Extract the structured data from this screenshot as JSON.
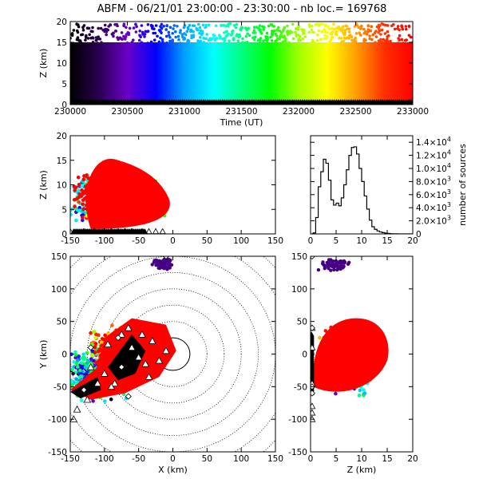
{
  "title": "ABFM - 06/21/01 23:00:00 - 23:30:00 - nb loc.= 169768",
  "colors": {
    "rainbow": [
      "#000000",
      "#2a0050",
      "#6a00c8",
      "#0000ff",
      "#00a0ff",
      "#00ffff",
      "#00ff80",
      "#00ff00",
      "#a0ff00",
      "#ffff00",
      "#ffa000",
      "#ff3000",
      "#ff0000"
    ],
    "late": "#ff0000",
    "station": "#000000"
  },
  "chart_data": [
    {
      "id": "time-height",
      "type": "scatter",
      "xlabel": "Time (UT)",
      "ylabel": "Z (km)",
      "xlim": [
        230000,
        233000
      ],
      "ylim": [
        0,
        20
      ],
      "x_ticks": [
        "230000",
        "230500",
        "231000",
        "231500",
        "232000",
        "232500",
        "233000"
      ],
      "y_ticks": [
        "0",
        "5",
        "10",
        "15",
        "20"
      ],
      "note_colour": "points coloured by time, black at 23:00 through rainbow to red at 23:30"
    },
    {
      "id": "x-height",
      "type": "scatter",
      "xlabel": "",
      "ylabel": "Z (km)",
      "xlim": [
        -150,
        150
      ],
      "ylim": [
        0,
        20
      ],
      "x_ticks": [
        "-150",
        "-100",
        "-50",
        "0",
        "50",
        "100",
        "150"
      ],
      "y_ticks": [
        "0",
        "5",
        "10",
        "15",
        "20"
      ]
    },
    {
      "id": "height-histogram",
      "type": "line",
      "xlabel": "",
      "ylabel": "number of sources",
      "xlim": [
        0,
        20
      ],
      "ylim": [
        0,
        15000
      ],
      "x_ticks": [
        "0",
        "5",
        "10",
        "15",
        "20"
      ],
      "y_ticks": [
        {
          "m": "0",
          "e": ""
        },
        {
          "m": "2.0×10",
          "e": "3"
        },
        {
          "m": "4.0×10",
          "e": "3"
        },
        {
          "m": "6.0×10",
          "e": "3"
        },
        {
          "m": "8.0×10",
          "e": "3"
        },
        {
          "m": "1.0×10",
          "e": "4"
        },
        {
          "m": "1.2×10",
          "e": "4"
        },
        {
          "m": "1.4×10",
          "e": "4"
        }
      ],
      "x": [
        0.5,
        1,
        1.5,
        2,
        2.5,
        3,
        3.5,
        4,
        4.5,
        5,
        5.5,
        6,
        6.5,
        7,
        7.5,
        8,
        8.5,
        9,
        9.5,
        10,
        10.5,
        11,
        11.5,
        12,
        12.5,
        13,
        13.5,
        14,
        14.5,
        15,
        15.5,
        16,
        17,
        18,
        19,
        20
      ],
      "values": [
        0,
        150,
        2500,
        7200,
        9500,
        11400,
        10800,
        8200,
        5200,
        4400,
        4700,
        4300,
        5500,
        7500,
        9800,
        12000,
        13200,
        13300,
        12200,
        10000,
        8000,
        5800,
        3800,
        2100,
        1100,
        700,
        450,
        300,
        200,
        120,
        80,
        40,
        20,
        10,
        5,
        0
      ]
    },
    {
      "id": "plan-view",
      "type": "scatter",
      "xlabel": "X (km)",
      "ylabel": "Y (km)",
      "xlim": [
        -150,
        150
      ],
      "ylim": [
        -150,
        150
      ],
      "x_ticks": [
        "-150",
        "-100",
        "-50",
        "0",
        "50",
        "100",
        "150"
      ],
      "y_ticks": [
        "-150",
        "-100",
        "-50",
        "0",
        "50",
        "100",
        "150"
      ],
      "range_rings_km": [
        25,
        50,
        75,
        100,
        125,
        150,
        175,
        200
      ]
    },
    {
      "id": "height-y",
      "type": "scatter",
      "xlabel": "Z (km)",
      "ylabel": "",
      "xlim": [
        0,
        20
      ],
      "ylim": [
        -150,
        150
      ],
      "x_ticks": [
        "0",
        "5",
        "10",
        "15",
        "20"
      ],
      "y_ticks": [
        "-150",
        "-100",
        "-50",
        "0",
        "50",
        "100",
        "150"
      ]
    }
  ]
}
